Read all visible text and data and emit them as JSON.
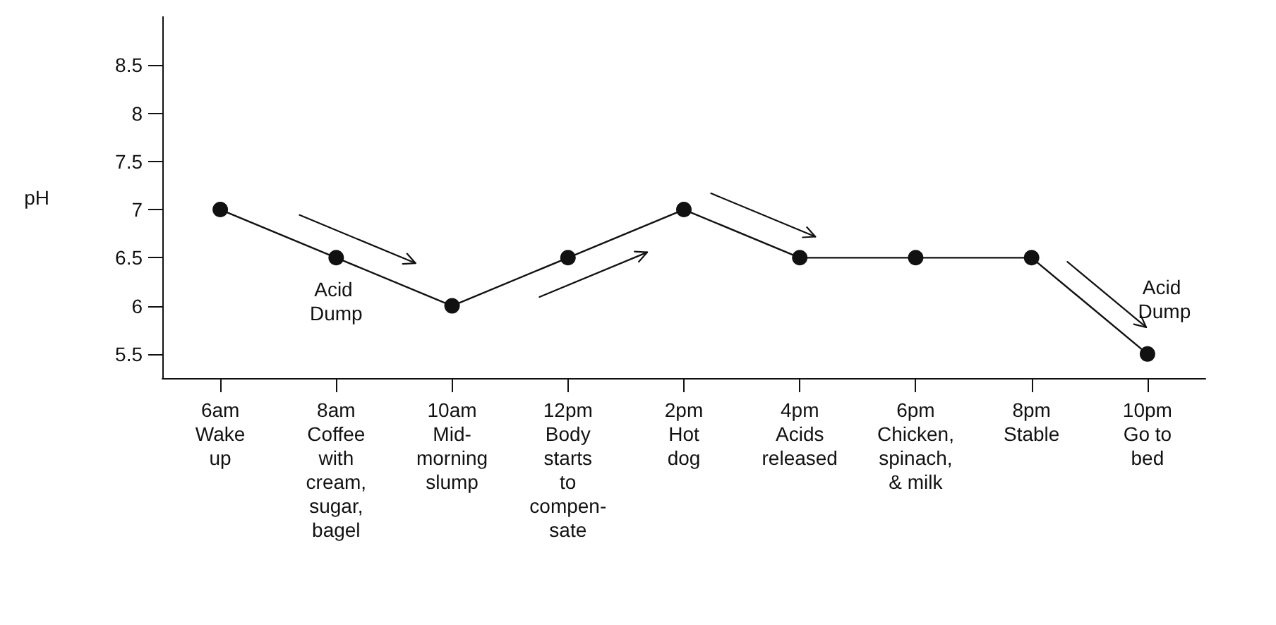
{
  "chart_data": {
    "type": "line",
    "ylabel": "pH",
    "categories": [
      "6am\nWake\nup",
      "8am\nCoffee\nwith\ncream,\nsugar,\nbagel",
      "10am\nMid-\nmorning\nslump",
      "12pm\nBody\nstarts\nto\ncompen-\nsate",
      "2pm\nHot\ndog",
      "4pm\nAcids\nreleased",
      "6pm\nChicken,\nspinach,\n& milk",
      "8pm\nStable",
      "10pm\nGo to\nbed"
    ],
    "series": [
      {
        "color": "#111111",
        "values": [
          7,
          6.5,
          6,
          6.5,
          7,
          6.5,
          6.5,
          6.5,
          5.5
        ]
      }
    ],
    "ylim": [
      5.25,
      9
    ],
    "yticks": [
      5.5,
      6,
      6.5,
      7,
      7.5,
      8,
      8.5
    ],
    "marker": "circle",
    "line_style": "solid",
    "annotations": [
      {
        "text": "Acid Dump",
        "x": "8am\nCoffee\nwith\ncream,\nsugar,\nbagel",
        "y": 6.5
      },
      {
        "text": "Acid Dump",
        "x": "10pm\nGo to\nbed",
        "y": 5.5
      }
    ]
  }
}
